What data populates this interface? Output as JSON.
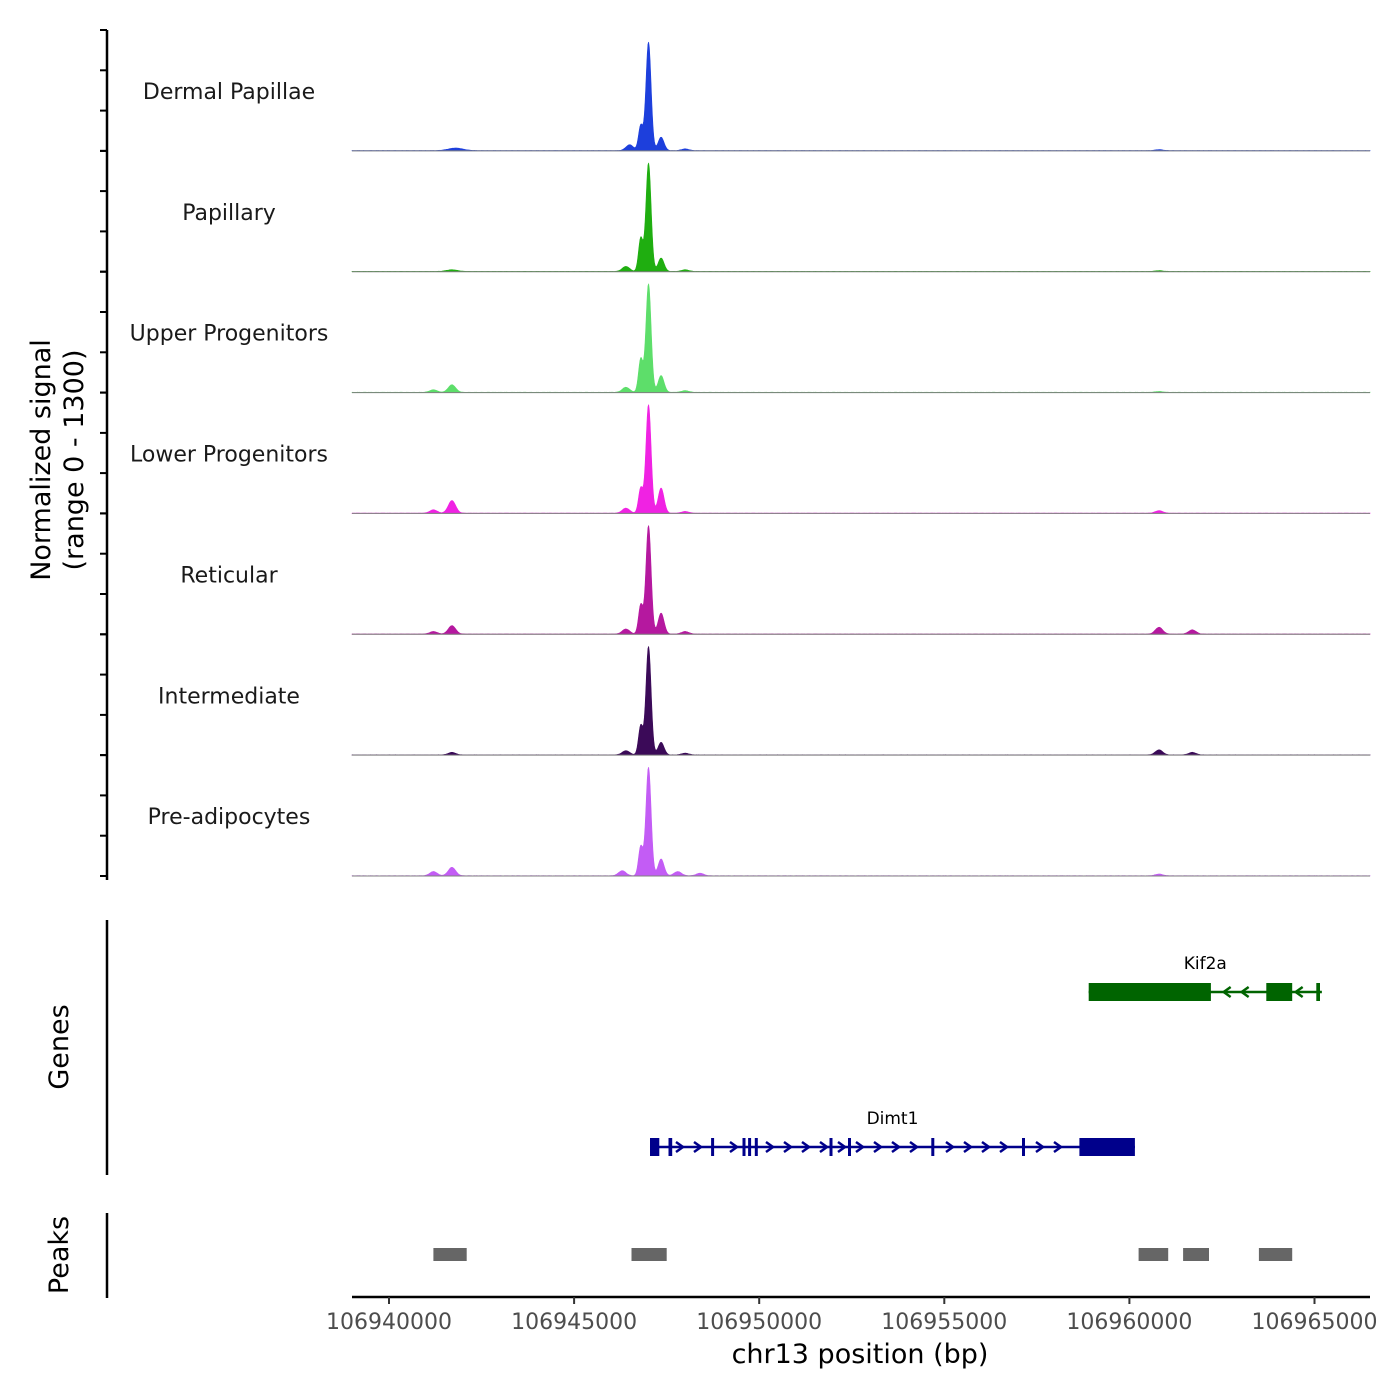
{
  "chart_data": {
    "type": "area",
    "chromosome": "chr13",
    "xlabel": "chr13 position (bp)",
    "xlim": [
      106939000,
      106966500
    ],
    "x_ticks": [
      106940000,
      106945000,
      106950000,
      106955000,
      106960000,
      106965000
    ],
    "x_tick_labels": [
      "106940000",
      "106945000",
      "106950000",
      "106955000",
      "106960000",
      "106965000"
    ],
    "signal_panel": {
      "ylabel_line1": "Normalized signal",
      "ylabel_line2": "(range 0 - 1300)",
      "ylim": [
        0,
        1300
      ],
      "tracks": [
        {
          "name": "Dermal Papillae",
          "color": "#1d3fdc",
          "peaks": [
            [
              106947010,
              1300,
              70
            ],
            [
              106946800,
              300,
              60
            ],
            [
              106947350,
              160,
              80
            ],
            [
              106941800,
              30,
              200
            ],
            [
              106946500,
              70,
              100
            ],
            [
              106948000,
              20,
              100
            ],
            [
              106960800,
              12,
              100
            ]
          ]
        },
        {
          "name": "Papillary",
          "color": "#1fae10",
          "peaks": [
            [
              106947010,
              1300,
              70
            ],
            [
              106946800,
              400,
              60
            ],
            [
              106947350,
              160,
              80
            ],
            [
              106941700,
              20,
              150
            ],
            [
              106946400,
              60,
              100
            ],
            [
              106948000,
              20,
              100
            ],
            [
              106960800,
              10,
              100
            ]
          ]
        },
        {
          "name": "Upper Progenitors",
          "color": "#5dde6a",
          "peaks": [
            [
              106947010,
              1300,
              70
            ],
            [
              106946800,
              400,
              60
            ],
            [
              106947350,
              200,
              80
            ],
            [
              106941700,
              90,
              100
            ],
            [
              106941200,
              30,
              100
            ],
            [
              106946400,
              60,
              100
            ],
            [
              106948000,
              20,
              100
            ],
            [
              106960800,
              10,
              100
            ]
          ]
        },
        {
          "name": "Lower Progenitors",
          "color": "#f022e3",
          "peaks": [
            [
              106947010,
              1300,
              70
            ],
            [
              106946800,
              300,
              60
            ],
            [
              106947350,
              300,
              80
            ],
            [
              106941700,
              150,
              100
            ],
            [
              106941200,
              40,
              100
            ],
            [
              106946400,
              60,
              100
            ],
            [
              106948000,
              20,
              100
            ],
            [
              106960800,
              30,
              100
            ]
          ]
        },
        {
          "name": "Reticular",
          "color": "#b5189f",
          "peaks": [
            [
              106947010,
              1300,
              70
            ],
            [
              106946800,
              350,
              60
            ],
            [
              106947350,
              250,
              80
            ],
            [
              106941700,
              100,
              100
            ],
            [
              106941200,
              30,
              100
            ],
            [
              106946400,
              60,
              100
            ],
            [
              106948000,
              30,
              100
            ],
            [
              106960800,
              80,
              100
            ],
            [
              106961700,
              50,
              100
            ]
          ]
        },
        {
          "name": "Intermediate",
          "color": "#3b0a58",
          "peaks": [
            [
              106947010,
              1300,
              70
            ],
            [
              106946800,
              350,
              60
            ],
            [
              106947350,
              150,
              80
            ],
            [
              106941700,
              30,
              100
            ],
            [
              106946400,
              50,
              100
            ],
            [
              106948000,
              20,
              100
            ],
            [
              106960800,
              60,
              100
            ],
            [
              106961700,
              30,
              100
            ]
          ]
        },
        {
          "name": "Pre-adipocytes",
          "color": "#c35cf5",
          "peaks": [
            [
              106947010,
              1300,
              70
            ],
            [
              106946800,
              350,
              60
            ],
            [
              106947350,
              200,
              80
            ],
            [
              106941700,
              100,
              100
            ],
            [
              106941200,
              50,
              100
            ],
            [
              106946300,
              60,
              100
            ],
            [
              106947800,
              50,
              100
            ],
            [
              106948400,
              30,
              100
            ],
            [
              106960800,
              20,
              100
            ]
          ]
        }
      ]
    },
    "genes_panel": {
      "ylabel": "Genes",
      "genes": [
        {
          "name": "Kif2a",
          "strand": "-",
          "color": "#006400",
          "start": 106958900,
          "end": 106965200,
          "exons": [
            [
              106958900,
              106962200
            ],
            [
              106963700,
              106964400
            ],
            [
              106965050,
              106965150
            ]
          ]
        },
        {
          "name": "Dimt1",
          "strand": "+",
          "color": "#00008b",
          "start": 106947050,
          "end": 106960150,
          "exons": [
            [
              106947050,
              106947300
            ],
            [
              106947550,
              106947650
            ],
            [
              106948700,
              106948780
            ],
            [
              106949550,
              106949620
            ],
            [
              106949700,
              106949780
            ],
            [
              106949880,
              106949960
            ],
            [
              106951900,
              106951980
            ],
            [
              106952400,
              106952480
            ],
            [
              106954650,
              106954730
            ],
            [
              106957100,
              106957180
            ],
            [
              106958650,
              106960150
            ]
          ]
        }
      ]
    },
    "peaks_panel": {
      "ylabel": "Peaks",
      "color": "#666666",
      "regions": [
        [
          106941200,
          106942100
        ],
        [
          106946550,
          106947500
        ],
        [
          106960250,
          106961050
        ],
        [
          106961450,
          106962150
        ],
        [
          106963500,
          106964400
        ]
      ]
    }
  }
}
